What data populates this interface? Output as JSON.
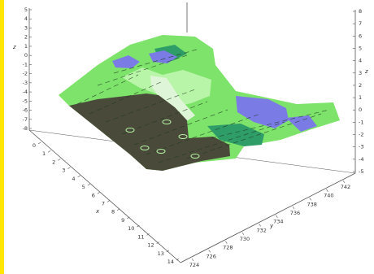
{
  "chart_data": {
    "type": "surface-3d",
    "title": "",
    "axes": {
      "z": {
        "label": "z",
        "range": [
          -8,
          5
        ],
        "ticks": [
          "5",
          "4",
          "3",
          "2",
          "1",
          "0",
          "-1",
          "-2",
          "-3",
          "-4",
          "-5",
          "-6",
          "-7",
          "-8"
        ]
      },
      "right": {
        "label": "z",
        "range": [
          -5,
          8
        ],
        "ticks": [
          "8",
          "7",
          "6",
          "5",
          "4",
          "3",
          "2",
          "1",
          "0",
          "-1",
          "-2",
          "-3",
          "-4",
          "-5"
        ]
      },
      "x": {
        "label": "x",
        "ticks": [
          "0",
          "1",
          "2",
          "3",
          "4",
          "5",
          "6",
          "7",
          "8",
          "9",
          "10",
          "11",
          "12",
          "13",
          "14"
        ]
      },
      "y": {
        "label": "y",
        "ticks": [
          "724",
          "726",
          "728",
          "730",
          "732",
          "734",
          "736",
          "738",
          "740",
          "742"
        ]
      }
    },
    "colors": {
      "low": "#4a4a3a",
      "green": "#7de36a",
      "light_green": "#b9f5a8",
      "pale": "#dff5d8",
      "teal": "#2f9d67",
      "blue": "#7b7be6",
      "box": "#555555",
      "edge_bar": "#ffe600"
    },
    "grid": false
  }
}
